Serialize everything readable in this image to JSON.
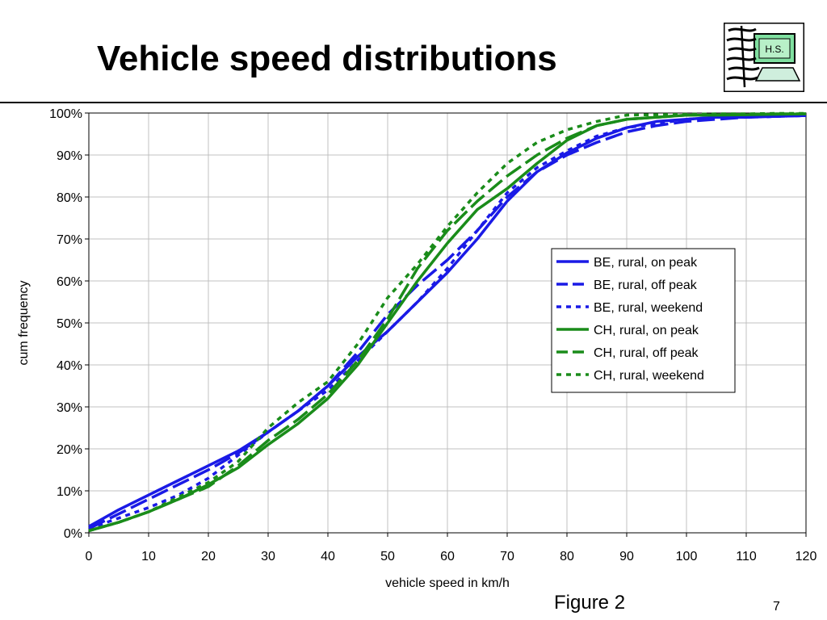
{
  "slide": {
    "title": "Vehicle speed distributions",
    "logo_text": "H.S.",
    "figure_label": "Figure 2",
    "page_number": "7"
  },
  "chart_data": {
    "type": "line",
    "xlabel": "vehicle speed in km/h",
    "ylabel": "cum frequency",
    "xlim": [
      0,
      120
    ],
    "ylim": [
      0,
      100
    ],
    "xticks": [
      0,
      10,
      20,
      30,
      40,
      50,
      60,
      70,
      80,
      90,
      100,
      110,
      120
    ],
    "yticks": [
      0,
      10,
      20,
      30,
      40,
      50,
      60,
      70,
      80,
      90,
      100
    ],
    "ytick_suffix": "%",
    "grid": true,
    "legend_position": "right",
    "series": [
      {
        "name": "BE, rural, on peak",
        "color": "#1a1ae6",
        "dash": "solid",
        "x": [
          0,
          5,
          10,
          15,
          20,
          25,
          30,
          35,
          40,
          45,
          50,
          55,
          60,
          65,
          70,
          75,
          80,
          85,
          90,
          95,
          100,
          105,
          110,
          115,
          120
        ],
        "y": [
          1.5,
          5.5,
          9,
          12.5,
          16,
          19.5,
          24,
          29,
          35,
          42,
          48,
          55,
          62,
          70,
          79,
          86,
          90.5,
          94,
          96.5,
          98,
          98.5,
          99,
          99,
          99.2,
          99.4
        ]
      },
      {
        "name": "BE, rural, off peak",
        "color": "#1a1ae6",
        "dash": "long",
        "x": [
          0,
          5,
          10,
          15,
          20,
          25,
          30,
          35,
          40,
          45,
          50,
          55,
          60,
          65,
          70,
          75,
          80,
          85,
          90,
          95,
          100,
          105,
          110,
          115,
          120
        ],
        "y": [
          1,
          4.5,
          8,
          11.5,
          15,
          19,
          24,
          29,
          35,
          43,
          52,
          59,
          65,
          72,
          80,
          86,
          90,
          93,
          95.5,
          97,
          98,
          98.5,
          99,
          99.2,
          99.4
        ]
      },
      {
        "name": "BE, rural, weekend",
        "color": "#1a1ae6",
        "dash": "dotted",
        "x": [
          0,
          5,
          10,
          15,
          20,
          25,
          30,
          35,
          40,
          45,
          50,
          55,
          60,
          65,
          70,
          75,
          80,
          85,
          90,
          95,
          100,
          105,
          110,
          115,
          120
        ],
        "y": [
          1,
          3.5,
          6,
          9,
          13,
          18.5,
          24,
          29,
          34,
          41,
          48,
          55,
          63,
          72,
          81,
          87,
          91,
          94.5,
          96.5,
          97.5,
          98.5,
          99,
          99,
          99.2,
          99.4
        ]
      },
      {
        "name": "CH, rural, on peak",
        "color": "#1a8c1a",
        "dash": "solid",
        "x": [
          0,
          5,
          10,
          15,
          20,
          25,
          30,
          35,
          40,
          45,
          50,
          55,
          60,
          65,
          70,
          75,
          80,
          85,
          90,
          95,
          100,
          105,
          110,
          115,
          120
        ],
        "y": [
          0.5,
          2.5,
          5,
          8,
          11.5,
          15.5,
          21,
          26,
          32,
          40,
          50,
          60,
          69,
          77,
          82,
          88,
          93.5,
          97,
          98.5,
          99,
          99.5,
          99.5,
          99.6,
          99.7,
          99.8
        ]
      },
      {
        "name": "CH, rural, off peak",
        "color": "#1a8c1a",
        "dash": "long",
        "x": [
          0,
          5,
          10,
          15,
          20,
          25,
          30,
          35,
          40,
          45,
          50,
          55,
          60,
          65,
          70,
          75,
          80,
          85,
          90,
          95,
          100,
          105,
          110,
          115,
          120
        ],
        "y": [
          0.5,
          2.5,
          5,
          8,
          11,
          16,
          22,
          27,
          33,
          41,
          51,
          63,
          72,
          79,
          85,
          90,
          94,
          97,
          98.5,
          99,
          99.5,
          99.6,
          99.7,
          99.8,
          99.8
        ]
      },
      {
        "name": "CH, rural, weekend",
        "color": "#1a8c1a",
        "dash": "dotted",
        "x": [
          0,
          5,
          10,
          15,
          20,
          25,
          30,
          35,
          40,
          45,
          50,
          55,
          60,
          65,
          70,
          75,
          80,
          85,
          90,
          95,
          100,
          105,
          110,
          115,
          120
        ],
        "y": [
          0.5,
          2.5,
          5,
          8.5,
          12,
          17,
          25,
          31,
          36,
          45,
          56,
          64,
          73,
          81,
          88,
          93,
          96,
          98,
          99.5,
          99.6,
          99.7,
          99.8,
          99.8,
          99.9,
          99.9
        ]
      }
    ]
  }
}
